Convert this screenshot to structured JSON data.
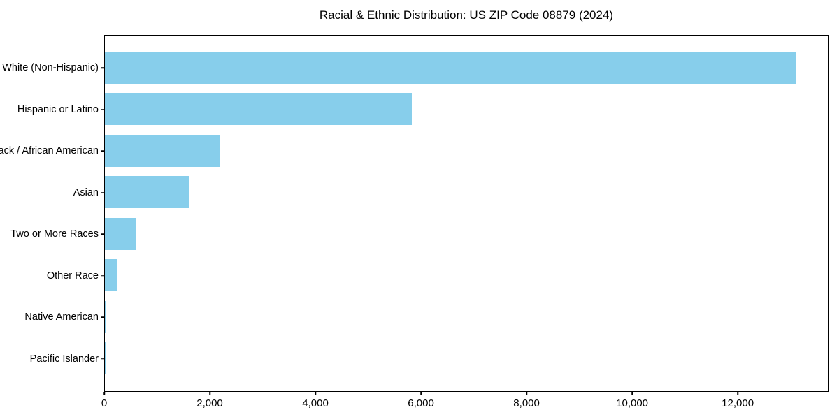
{
  "chart_data": {
    "type": "bar",
    "orientation": "horizontal",
    "title": "Racial & Ethnic Distribution: US ZIP Code 08879 (2024)",
    "categories": [
      "White (Non-Hispanic)",
      "Hispanic or Latino",
      "Black / African American",
      "Asian",
      "Two or More Races",
      "Other Race",
      "Native American",
      "Pacific Islander"
    ],
    "values": [
      13090,
      5810,
      2170,
      1590,
      580,
      240,
      10,
      5
    ],
    "xlabel": "",
    "ylabel": "",
    "xlim": [
      0,
      13720
    ],
    "xticks": [
      0,
      2000,
      4000,
      6000,
      8000,
      10000,
      12000
    ],
    "xtick_labels": [
      "0",
      "2,000",
      "4,000",
      "6,000",
      "8,000",
      "10,000",
      "12,000"
    ],
    "bar_color": "#87CEEB",
    "spine_color": "#000000",
    "background_color": "#FFFFFF",
    "grid": false,
    "legend": false
  }
}
